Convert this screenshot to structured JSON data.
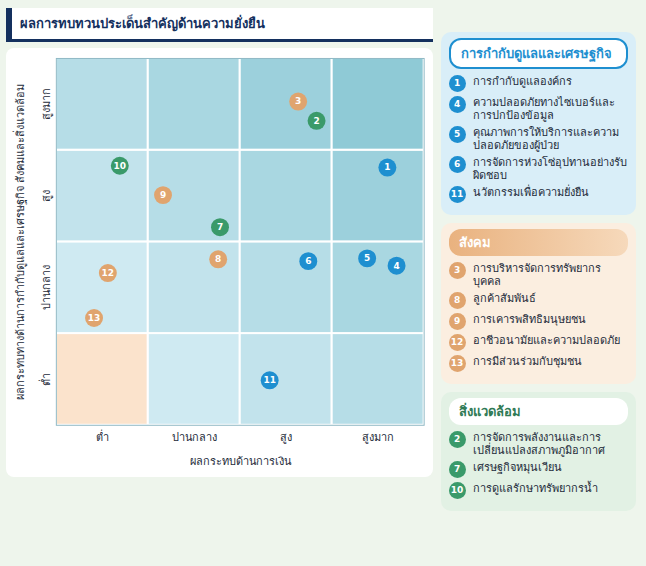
{
  "chart_data": {
    "type": "scatter",
    "title": "ผลการทบทวนประเด็นสำคัญด้านความยั่งยืน",
    "x_label": "ผลกระทบด้านการเงิน",
    "y_label": "ผลกระทบทางด้านการกำกับดูแลและเศรษฐกิจ สังคมและสิ่งแวดล้อม",
    "xlim": [
      0,
      4
    ],
    "ylim": [
      0,
      4
    ],
    "xticks": [
      {
        "value": 0.5,
        "label": "ต่ำ"
      },
      {
        "value": 1.5,
        "label": "ปานกลาง"
      },
      {
        "value": 2.5,
        "label": "สูง"
      },
      {
        "value": 3.5,
        "label": "สูงมาก"
      }
    ],
    "yticks": [
      {
        "value": 0.5,
        "label": "ต่ำ"
      },
      {
        "value": 1.5,
        "label": "ปานกลาง"
      },
      {
        "value": 2.5,
        "label": "สูง"
      },
      {
        "value": 3.5,
        "label": "สูงมาก"
      }
    ],
    "grid": true,
    "legend": "right",
    "series": [
      {
        "name": "การกำกับดูแลและเศรษฐกิจ",
        "color": "#1e8fd0",
        "points": [
          {
            "label": "1",
            "text": "การกำกับดูแลองค์กร",
            "x": 3.6,
            "y": 2.81
          },
          {
            "label": "4",
            "text": "ความปลอดภัยทางไซเบอร์และการปกป้องข้อมูล",
            "x": 3.7,
            "y": 1.74
          },
          {
            "label": "5",
            "text": "คุณภาพการให้บริการและความปลอดภัยของผู้ป่วย",
            "x": 3.38,
            "y": 1.82
          },
          {
            "label": "6",
            "text": "การจัดการห่วงโซ่อุปทานอย่างรับผิดชอบ",
            "x": 2.74,
            "y": 1.79
          },
          {
            "label": "11",
            "text": "นวัตกรรมเพื่อความยั่งยืน",
            "x": 2.32,
            "y": 0.49
          }
        ]
      },
      {
        "name": "สังคม",
        "color": "#e0a46e",
        "points": [
          {
            "label": "3",
            "text": "การบริหารจัดการทรัพยากรบุคคล",
            "x": 2.63,
            "y": 3.53
          },
          {
            "label": "8",
            "text": "ลูกค้าสัมพันธ์",
            "x": 1.76,
            "y": 1.81
          },
          {
            "label": "9",
            "text": "การเคารพสิทธิมนุษยชน",
            "x": 1.16,
            "y": 2.51
          },
          {
            "label": "12",
            "text": "อาชีวอนามัยและความปลอดภัย",
            "x": 0.56,
            "y": 1.66
          },
          {
            "label": "13",
            "text": "การมีส่วนร่วมกับชุมชน",
            "x": 0.41,
            "y": 1.17
          }
        ]
      },
      {
        "name": "สิ่งแวดล้อม",
        "color": "#3a9a6a",
        "points": [
          {
            "label": "2",
            "text": "การจัดการพลังงานและการเปลี่ยนแปลงสภาพภูมิอากาศ",
            "x": 2.83,
            "y": 3.32
          },
          {
            "label": "7",
            "text": "เศรษฐกิจหมุนเวียน",
            "x": 1.78,
            "y": 2.16
          },
          {
            "label": "10",
            "text": "การดูแลรักษาทรัพยากรน้ำ",
            "x": 0.69,
            "y": 2.83
          }
        ]
      }
    ]
  }
}
